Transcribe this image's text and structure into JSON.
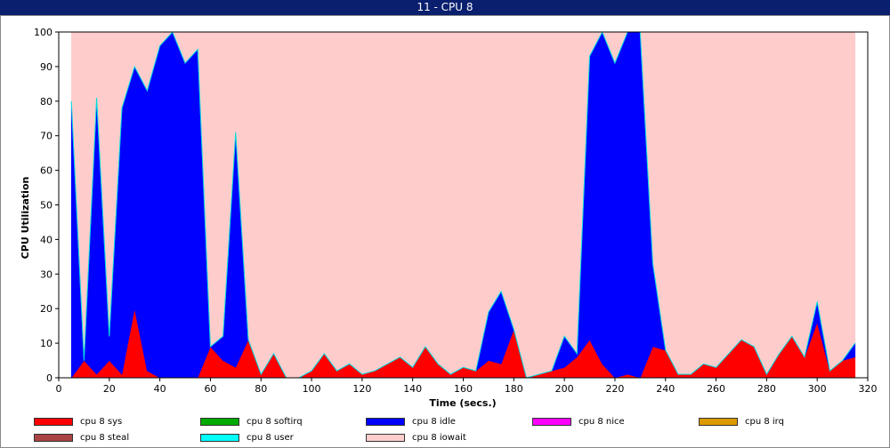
{
  "window": {
    "title": "11 - CPU 8"
  },
  "chart_data": {
    "type": "area",
    "title": "",
    "xlabel": "Time (secs.)",
    "ylabel": "CPU Utilization",
    "xlim": [
      0,
      320
    ],
    "ylim": [
      0,
      100
    ],
    "xticks": [
      0,
      20,
      40,
      60,
      80,
      100,
      120,
      140,
      160,
      180,
      200,
      220,
      240,
      260,
      280,
      300,
      320
    ],
    "yticks": [
      0,
      10,
      20,
      30,
      40,
      50,
      60,
      70,
      80,
      90,
      100
    ],
    "stacked": true,
    "grid": false,
    "legend_position": "bottom",
    "x": [
      5,
      10,
      15,
      20,
      25,
      30,
      35,
      40,
      45,
      50,
      55,
      60,
      65,
      70,
      75,
      80,
      85,
      90,
      95,
      100,
      105,
      110,
      115,
      120,
      125,
      130,
      135,
      140,
      145,
      150,
      155,
      160,
      165,
      170,
      175,
      180,
      185,
      190,
      195,
      200,
      205,
      210,
      215,
      220,
      225,
      230,
      235,
      240,
      245,
      250,
      255,
      260,
      265,
      270,
      275,
      280,
      285,
      290,
      295,
      300,
      305,
      310,
      315
    ],
    "series": [
      {
        "name": "cpu 8 sys",
        "color": "#ff0000",
        "values": [
          0,
          5,
          1,
          5,
          1,
          20,
          2,
          0,
          0,
          0,
          0,
          9,
          5,
          3,
          11,
          1,
          7,
          0,
          0,
          2,
          7,
          2,
          4,
          1,
          2,
          4,
          6,
          3,
          9,
          4,
          1,
          3,
          2,
          5,
          4,
          14,
          0,
          1,
          2,
          3,
          6,
          11,
          4,
          0,
          1,
          0,
          9,
          8,
          1,
          1,
          4,
          3,
          7,
          11,
          9,
          1,
          7,
          12,
          6,
          16,
          2,
          5,
          6
        ]
      },
      {
        "name": "cpu 8 softirq",
        "color": "#00aa00",
        "values": [
          0,
          0,
          0,
          0,
          0,
          0,
          0,
          0,
          0,
          0,
          0,
          0,
          0,
          0,
          0,
          0,
          0,
          0,
          0,
          0,
          0,
          0,
          0,
          0,
          0,
          0,
          0,
          0,
          0,
          0,
          0,
          0,
          0,
          0,
          0,
          0,
          0,
          0,
          0,
          0,
          0,
          0,
          0,
          0,
          0,
          0,
          0,
          0,
          0,
          0,
          0,
          0,
          0,
          0,
          0,
          0,
          0,
          0,
          0,
          0,
          0,
          0,
          0
        ]
      },
      {
        "name": "cpu 8 idle",
        "color": "#0000ff",
        "values": [
          80,
          0,
          80,
          7,
          77,
          70,
          81,
          96,
          100,
          91,
          95,
          0,
          7,
          68,
          0,
          0,
          0,
          0,
          0,
          0,
          0,
          0,
          0,
          0,
          0,
          0,
          0,
          0,
          0,
          0,
          0,
          0,
          0,
          14,
          21,
          0,
          0,
          0,
          0,
          9,
          1,
          82,
          96,
          91,
          99,
          100,
          24,
          0,
          0,
          0,
          0,
          0,
          0,
          0,
          0,
          0,
          0,
          0,
          0,
          6,
          0,
          0,
          4
        ]
      },
      {
        "name": "cpu 8 nice",
        "color": "#ff00ff",
        "values": [
          0,
          0,
          0,
          0,
          0,
          0,
          0,
          0,
          0,
          0,
          0,
          0,
          0,
          0,
          0,
          0,
          0,
          0,
          0,
          0,
          0,
          0,
          0,
          0,
          0,
          0,
          0,
          0,
          0,
          0,
          0,
          0,
          0,
          0,
          0,
          0,
          0,
          0,
          0,
          0,
          0,
          0,
          0,
          0,
          0,
          0,
          0,
          0,
          0,
          0,
          0,
          0,
          0,
          0,
          0,
          0,
          0,
          0,
          0,
          0,
          0,
          0,
          0
        ]
      },
      {
        "name": "cpu 8 irq",
        "color": "#dd9900",
        "values": [
          0,
          0,
          0,
          0,
          0,
          0,
          0,
          0,
          0,
          0,
          0,
          0,
          0,
          0,
          0,
          0,
          0,
          0,
          0,
          0,
          0,
          0,
          0,
          0,
          0,
          0,
          0,
          0,
          0,
          0,
          0,
          0,
          0,
          0,
          0,
          0,
          0,
          0,
          0,
          0,
          0,
          0,
          0,
          0,
          0,
          0,
          0,
          0,
          0,
          0,
          0,
          0,
          0,
          0,
          0,
          0,
          0,
          0,
          0,
          0,
          0,
          0,
          0
        ]
      },
      {
        "name": "cpu 8 steal",
        "color": "#aa4444",
        "values": [
          0,
          0,
          0,
          0,
          0,
          0,
          0,
          0,
          0,
          0,
          0,
          0,
          0,
          0,
          0,
          0,
          0,
          0,
          0,
          0,
          0,
          0,
          0,
          0,
          0,
          0,
          0,
          0,
          0,
          0,
          0,
          0,
          0,
          0,
          0,
          0,
          0,
          0,
          0,
          0,
          0,
          0,
          0,
          0,
          0,
          0,
          0,
          0,
          0,
          0,
          0,
          0,
          0,
          0,
          0,
          0,
          0,
          0,
          0,
          0,
          0,
          0,
          0
        ]
      },
      {
        "name": "cpu 8 user",
        "color": "#00ffff",
        "values": [
          0,
          0,
          0,
          0,
          0,
          0,
          0,
          0,
          0,
          0,
          0,
          0,
          0,
          0,
          0,
          0,
          0,
          0,
          0,
          0,
          0,
          0,
          0,
          0,
          0,
          0,
          0,
          0,
          0,
          0,
          0,
          0,
          0,
          0,
          0,
          0,
          0,
          0,
          0,
          0,
          0,
          0,
          0,
          0,
          0,
          0,
          0,
          0,
          0,
          0,
          0,
          0,
          0,
          0,
          0,
          0,
          0,
          0,
          0,
          0,
          0,
          0,
          0
        ]
      },
      {
        "name": "cpu 8 iowait",
        "color": "#ffcccc",
        "values": [
          20,
          95,
          19,
          88,
          22,
          10,
          17,
          4,
          0,
          9,
          5,
          91,
          88,
          29,
          89,
          99,
          93,
          100,
          100,
          98,
          93,
          98,
          96,
          99,
          98,
          96,
          94,
          97,
          91,
          96,
          99,
          97,
          98,
          81,
          75,
          86,
          100,
          99,
          98,
          88,
          93,
          7,
          0,
          9,
          0,
          0,
          67,
          92,
          99,
          99,
          96,
          97,
          93,
          89,
          91,
          99,
          93,
          88,
          94,
          78,
          98,
          95,
          90
        ]
      }
    ]
  }
}
